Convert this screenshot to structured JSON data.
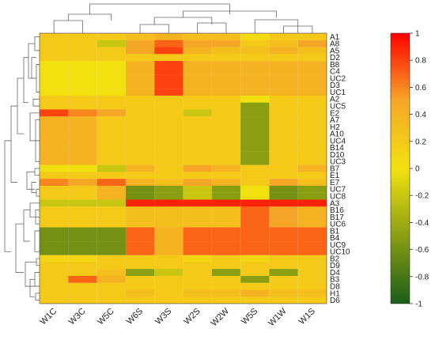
{
  "chart_data": {
    "type": "heatmap",
    "title": "",
    "columns": [
      "W1C",
      "W3C",
      "W5C",
      "W6S",
      "W3S",
      "W2S",
      "W2W",
      "W5S",
      "W1W",
      "W1S"
    ],
    "rows": [
      "A1",
      "A8",
      "A5",
      "D2",
      "B8",
      "C4",
      "UC2",
      "D3",
      "UC1",
      "A2",
      "UC5",
      "E2",
      "A7",
      "H2",
      "A10",
      "UC4",
      "B14",
      "D10",
      "UC3",
      "B7",
      "E1",
      "E7",
      "UC7",
      "UC8",
      "A3",
      "B16",
      "B17",
      "UC6",
      "B1",
      "B4",
      "UC9",
      "UC10",
      "B2",
      "D9",
      "D4",
      "B3",
      "D8",
      "H1",
      "D6"
    ],
    "values": [
      [
        0.2,
        0.2,
        0.2,
        0.3,
        0.4,
        0.3,
        0.3,
        0.05,
        0.2,
        0.2
      ],
      [
        0.2,
        0.2,
        -0.2,
        0.5,
        0.7,
        0.5,
        0.5,
        0.2,
        0.3,
        0.5
      ],
      [
        0.2,
        0.2,
        0.2,
        0.5,
        0.8,
        0.4,
        0.3,
        0.3,
        0.4,
        0.3
      ],
      [
        0.2,
        0.2,
        0.2,
        0.2,
        0.2,
        0.2,
        0.2,
        0.2,
        0.2,
        0.2
      ],
      [
        0.0,
        0.0,
        0.0,
        0.4,
        0.8,
        0.4,
        0.4,
        0.4,
        0.4,
        0.4
      ],
      [
        0.0,
        0.0,
        0.0,
        0.4,
        0.8,
        0.4,
        0.4,
        0.4,
        0.4,
        0.4
      ],
      [
        0.0,
        0.0,
        0.0,
        0.4,
        0.8,
        0.4,
        0.4,
        0.4,
        0.4,
        0.4
      ],
      [
        0.0,
        0.0,
        0.0,
        0.4,
        0.8,
        0.4,
        0.4,
        0.4,
        0.4,
        0.4
      ],
      [
        0.0,
        0.0,
        0.0,
        0.4,
        0.8,
        0.4,
        0.4,
        0.4,
        0.4,
        0.4
      ],
      [
        0.2,
        0.2,
        0.2,
        0.2,
        0.2,
        0.2,
        0.2,
        0.0,
        0.2,
        0.2
      ],
      [
        0.2,
        0.2,
        0.2,
        0.2,
        0.2,
        0.2,
        0.2,
        -0.5,
        0.2,
        0.2
      ],
      [
        0.8,
        0.6,
        0.5,
        0.2,
        0.2,
        -0.2,
        0.2,
        -0.5,
        0.2,
        0.2
      ],
      [
        0.4,
        0.4,
        0.2,
        0.2,
        0.2,
        0.2,
        0.2,
        -0.5,
        0.2,
        0.2
      ],
      [
        0.4,
        0.4,
        0.2,
        0.2,
        0.2,
        0.2,
        0.2,
        -0.5,
        0.2,
        0.2
      ],
      [
        0.4,
        0.4,
        0.2,
        0.2,
        0.2,
        0.2,
        0.2,
        -0.5,
        0.2,
        0.2
      ],
      [
        0.4,
        0.4,
        0.2,
        0.2,
        0.2,
        0.2,
        0.2,
        -0.5,
        0.2,
        0.2
      ],
      [
        0.4,
        0.4,
        0.2,
        0.2,
        0.2,
        0.2,
        0.2,
        -0.5,
        0.2,
        0.2
      ],
      [
        0.4,
        0.4,
        0.2,
        0.2,
        0.2,
        0.2,
        0.2,
        -0.5,
        0.2,
        0.2
      ],
      [
        0.4,
        0.4,
        0.2,
        0.2,
        0.2,
        0.2,
        0.2,
        -0.5,
        0.2,
        0.2
      ],
      [
        0.0,
        0.0,
        -0.2,
        0.4,
        0.2,
        0.5,
        0.4,
        0.2,
        0.2,
        0.4
      ],
      [
        0.2,
        0.2,
        0.2,
        0.2,
        0.2,
        0.2,
        0.2,
        0.2,
        0.2,
        0.2
      ],
      [
        0.6,
        0.5,
        0.7,
        0.4,
        0.3,
        0.5,
        0.4,
        0.2,
        0.5,
        0.3
      ],
      [
        0.2,
        0.2,
        0.4,
        -0.6,
        -0.5,
        -0.2,
        -0.5,
        0.0,
        -0.6,
        -0.5
      ],
      [
        0.2,
        0.2,
        0.4,
        -0.6,
        -0.5,
        -0.2,
        -0.5,
        0.0,
        -0.6,
        -0.5
      ],
      [
        -0.2,
        -0.2,
        -0.2,
        0.9,
        0.9,
        0.9,
        0.9,
        0.9,
        0.9,
        0.9
      ],
      [
        0.2,
        0.2,
        0.2,
        0.3,
        0.3,
        0.3,
        0.3,
        0.7,
        0.5,
        0.4
      ],
      [
        0.2,
        0.2,
        0.2,
        0.3,
        0.3,
        0.3,
        0.3,
        0.7,
        0.5,
        0.4
      ],
      [
        0.2,
        0.2,
        0.2,
        0.3,
        0.3,
        0.3,
        0.3,
        0.7,
        0.5,
        0.4
      ],
      [
        -0.6,
        -0.6,
        -0.6,
        0.7,
        0.4,
        0.7,
        0.7,
        0.7,
        0.7,
        0.7
      ],
      [
        -0.6,
        -0.6,
        -0.6,
        0.7,
        0.4,
        0.7,
        0.7,
        0.7,
        0.7,
        0.7
      ],
      [
        -0.6,
        -0.6,
        -0.6,
        0.7,
        0.4,
        0.7,
        0.7,
        0.7,
        0.7,
        0.7
      ],
      [
        -0.6,
        -0.6,
        -0.6,
        0.7,
        0.4,
        0.7,
        0.7,
        0.7,
        0.7,
        0.7
      ],
      [
        0.1,
        0.1,
        0.2,
        0.2,
        0.2,
        0.1,
        0.2,
        0.1,
        0.2,
        0.2
      ],
      [
        0.2,
        0.2,
        0.2,
        0.2,
        0.2,
        0.2,
        0.2,
        0.2,
        0.2,
        0.2
      ],
      [
        0.2,
        0.2,
        0.3,
        -0.5,
        -0.2,
        0.2,
        -0.5,
        0.2,
        -0.5,
        0.2
      ],
      [
        0.2,
        0.7,
        0.4,
        0.2,
        0.2,
        0.2,
        0.2,
        -0.5,
        0.2,
        0.2
      ],
      [
        0.2,
        0.2,
        0.2,
        0.2,
        0.2,
        0.2,
        0.2,
        0.2,
        0.2,
        0.2
      ],
      [
        0.2,
        0.2,
        0.2,
        0.3,
        0.2,
        0.3,
        0.3,
        0.4,
        0.3,
        0.3
      ],
      [
        0.2,
        0.2,
        0.2,
        0.2,
        0.2,
        0.2,
        0.2,
        0.2,
        0.2,
        0.2
      ]
    ],
    "colorbar": {
      "range": [
        -1,
        1
      ],
      "ticks": [
        -1,
        -0.8,
        -0.6,
        -0.4,
        -0.2,
        0,
        0.2,
        0.4,
        0.6,
        0.8,
        1
      ],
      "tick_labels": [
        "-1",
        "-0.8",
        "-0.6",
        "-0.4",
        "-0.2",
        "0",
        "0.2",
        "0.4",
        "0.6",
        "0.8",
        "1"
      ],
      "colors": [
        "#1a5e1a",
        "#f2e10f",
        "#ff0000"
      ]
    },
    "dendrograms": {
      "top": true,
      "left": true
    },
    "grid": false,
    "legend": "right"
  }
}
